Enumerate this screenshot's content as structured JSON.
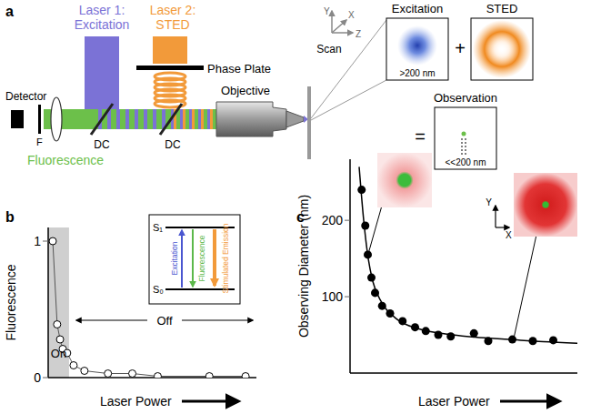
{
  "diagram": {
    "panel_label": "a",
    "lasers": [
      {
        "name": "Laser 1:",
        "role": "Excitation",
        "color": "#7b72d6"
      },
      {
        "name": "Laser 2:",
        "role": "STED",
        "color": "#f29a3a"
      }
    ],
    "phase_plate": "Phase Plate",
    "detector": "Detector",
    "filter": "F",
    "dichroic_mirrors": [
      "DC",
      "DC"
    ],
    "fluorescence": {
      "label": "Fluorescence",
      "color": "#6cc04a"
    },
    "objective": "Objective",
    "scan": {
      "label": "Scan",
      "axes": [
        "Y",
        "X",
        "Z"
      ]
    },
    "excitation_panel": {
      "title": "Excitation",
      "note": ">200 nm"
    },
    "plus": "+",
    "sted_panel": {
      "title": "STED"
    },
    "equals": "=",
    "observation_panel": {
      "title": "Observation",
      "note": "<<200 nm"
    }
  },
  "chart_data": [
    {
      "panel_label": "b",
      "type": "line",
      "marker": "open_circle",
      "color": "#000000",
      "ylabel": "Fluorescence",
      "xlabel": "Laser Power",
      "x": [
        2.2,
        4.3,
        5.7,
        7.0,
        9.1,
        12.2,
        17.4,
        28.7,
        40.4,
        52.6,
        77.4,
        94.8
      ],
      "values": [
        1.0,
        0.39,
        0.28,
        0.21,
        0.18,
        0.09,
        0.05,
        0.03,
        0.03,
        0.01,
        0.01,
        0.01
      ],
      "xlim": [
        0,
        100
      ],
      "ylim": [
        0,
        1.1
      ],
      "yticks": [
        0,
        1
      ],
      "tick_labels": "y",
      "grid": false,
      "shaded_range": {
        "x": [
          0,
          10
        ],
        "label": "On"
      },
      "annotations": [
        {
          "text": "Off"
        }
      ],
      "inset": {
        "levels": [
          "S₁",
          "S₀"
        ],
        "transitions": [
          {
            "label": "Excitation",
            "color": "#4a56d0"
          },
          {
            "label": "Fluorescence",
            "color": "#5cb84a"
          },
          {
            "label": "Stimulated Emission",
            "color": "#f29a3a"
          }
        ]
      }
    },
    {
      "panel_label": "c",
      "type": "scatter",
      "ylabel": "Observing Diameter (nm)",
      "xlabel": "Laser Power",
      "xlim": [
        0,
        100
      ],
      "ylim": [
        0,
        280
      ],
      "yticks": [
        100,
        200
      ],
      "tick_labels": "y",
      "grid": false,
      "series": [
        {
          "type": "scatter",
          "marker": "circle",
          "color": "#000000",
          "x": [
            5.1,
            6.7,
            7.8,
            9.4,
            11.0,
            14.1,
            17.6,
            23.1,
            28.6,
            33.3,
            38.8,
            44.3,
            54.5,
            60.8,
            71.4,
            80.4,
            89.4
          ],
          "values": [
            240,
            193,
            155,
            125,
            105,
            88,
            78,
            68,
            60,
            55,
            50,
            48,
            52,
            42,
            44,
            42,
            43
          ]
        },
        {
          "type": "line",
          "line_style": "solid",
          "color": "#000000",
          "x": [
            4,
            6,
            8,
            10,
            14,
            20,
            30,
            40,
            55,
            70,
            85,
            100
          ],
          "values": [
            270,
            200,
            150,
            120,
            92,
            72,
            58,
            52,
            47,
            44,
            41,
            39
          ]
        }
      ],
      "inset_axes": [
        "Y",
        "X"
      ]
    }
  ]
}
